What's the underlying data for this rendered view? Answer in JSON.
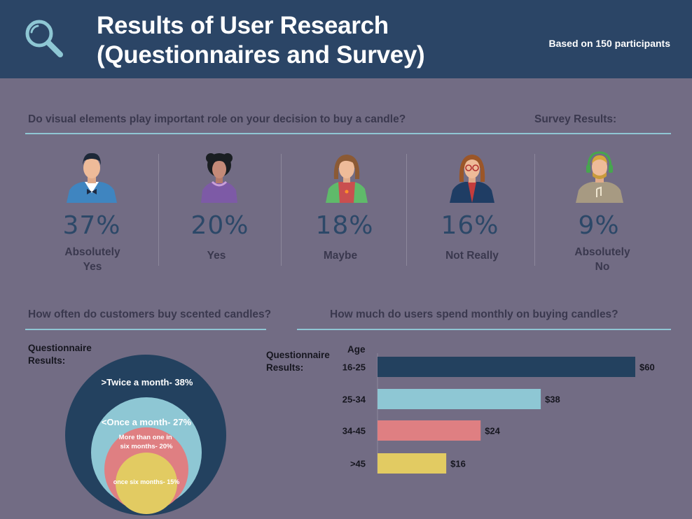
{
  "header": {
    "title_line1": "Results of User Research",
    "title_line2": "(Questionnaires and Survey)",
    "participants": "Based on 150 participants",
    "icon": "magnifier-icon"
  },
  "survey": {
    "question": "Do visual elements play important role on your decision to buy a candle?",
    "results_label": "Survey Results:",
    "items": [
      {
        "percent": "37%",
        "label": "Absolutely\nYes",
        "icon": "man-bowtie-avatar-icon"
      },
      {
        "percent": "20%",
        "label": "Yes",
        "icon": "woman-curly-avatar-icon"
      },
      {
        "percent": "18%",
        "label": "Maybe",
        "icon": "woman-brown-hair-avatar-icon"
      },
      {
        "percent": "16%",
        "label": "Not Really",
        "icon": "woman-glasses-avatar-icon"
      },
      {
        "percent": "9%",
        "label": "Absolutely\nNo",
        "icon": "man-headphones-avatar-icon"
      }
    ]
  },
  "frequency": {
    "question": "How often do customers buy scented candles?",
    "results_label": "Questionnaire\nResults:"
  },
  "spending": {
    "question": "How much do users spend monthly on buying candles?",
    "results_label": "Questionnaire\nResults:",
    "axis_label": "Age"
  },
  "colors": {
    "header_bg": "#2b4566",
    "page_bg": "#726c84",
    "navy": "#23415f",
    "light_blue": "#8ec7d4",
    "pink": "#df7f82",
    "yellow": "#e2cb62"
  },
  "chart_data": [
    {
      "type": "nested-circles",
      "title": "How often do customers buy scented candles?",
      "categories": [
        ">Twice a month",
        "<Once a month",
        "More than one in six months",
        "once six months"
      ],
      "values": [
        38,
        27,
        20,
        15
      ],
      "labels": [
        ">Twice a month- 38%",
        "<Once a month- 27%",
        "More than one in\nsix months- 20%",
        "once six months- 15%"
      ],
      "unit": "%"
    },
    {
      "type": "bar",
      "orientation": "horizontal",
      "title": "How much do users spend monthly on buying candles?",
      "ylabel": "Age",
      "categories": [
        "16-25",
        "25-34",
        "34-45",
        ">45"
      ],
      "values": [
        60,
        38,
        24,
        16
      ],
      "value_labels": [
        "$60",
        "$38",
        "$24",
        "$16"
      ],
      "unit": "$",
      "xlim": [
        0,
        60
      ]
    }
  ]
}
